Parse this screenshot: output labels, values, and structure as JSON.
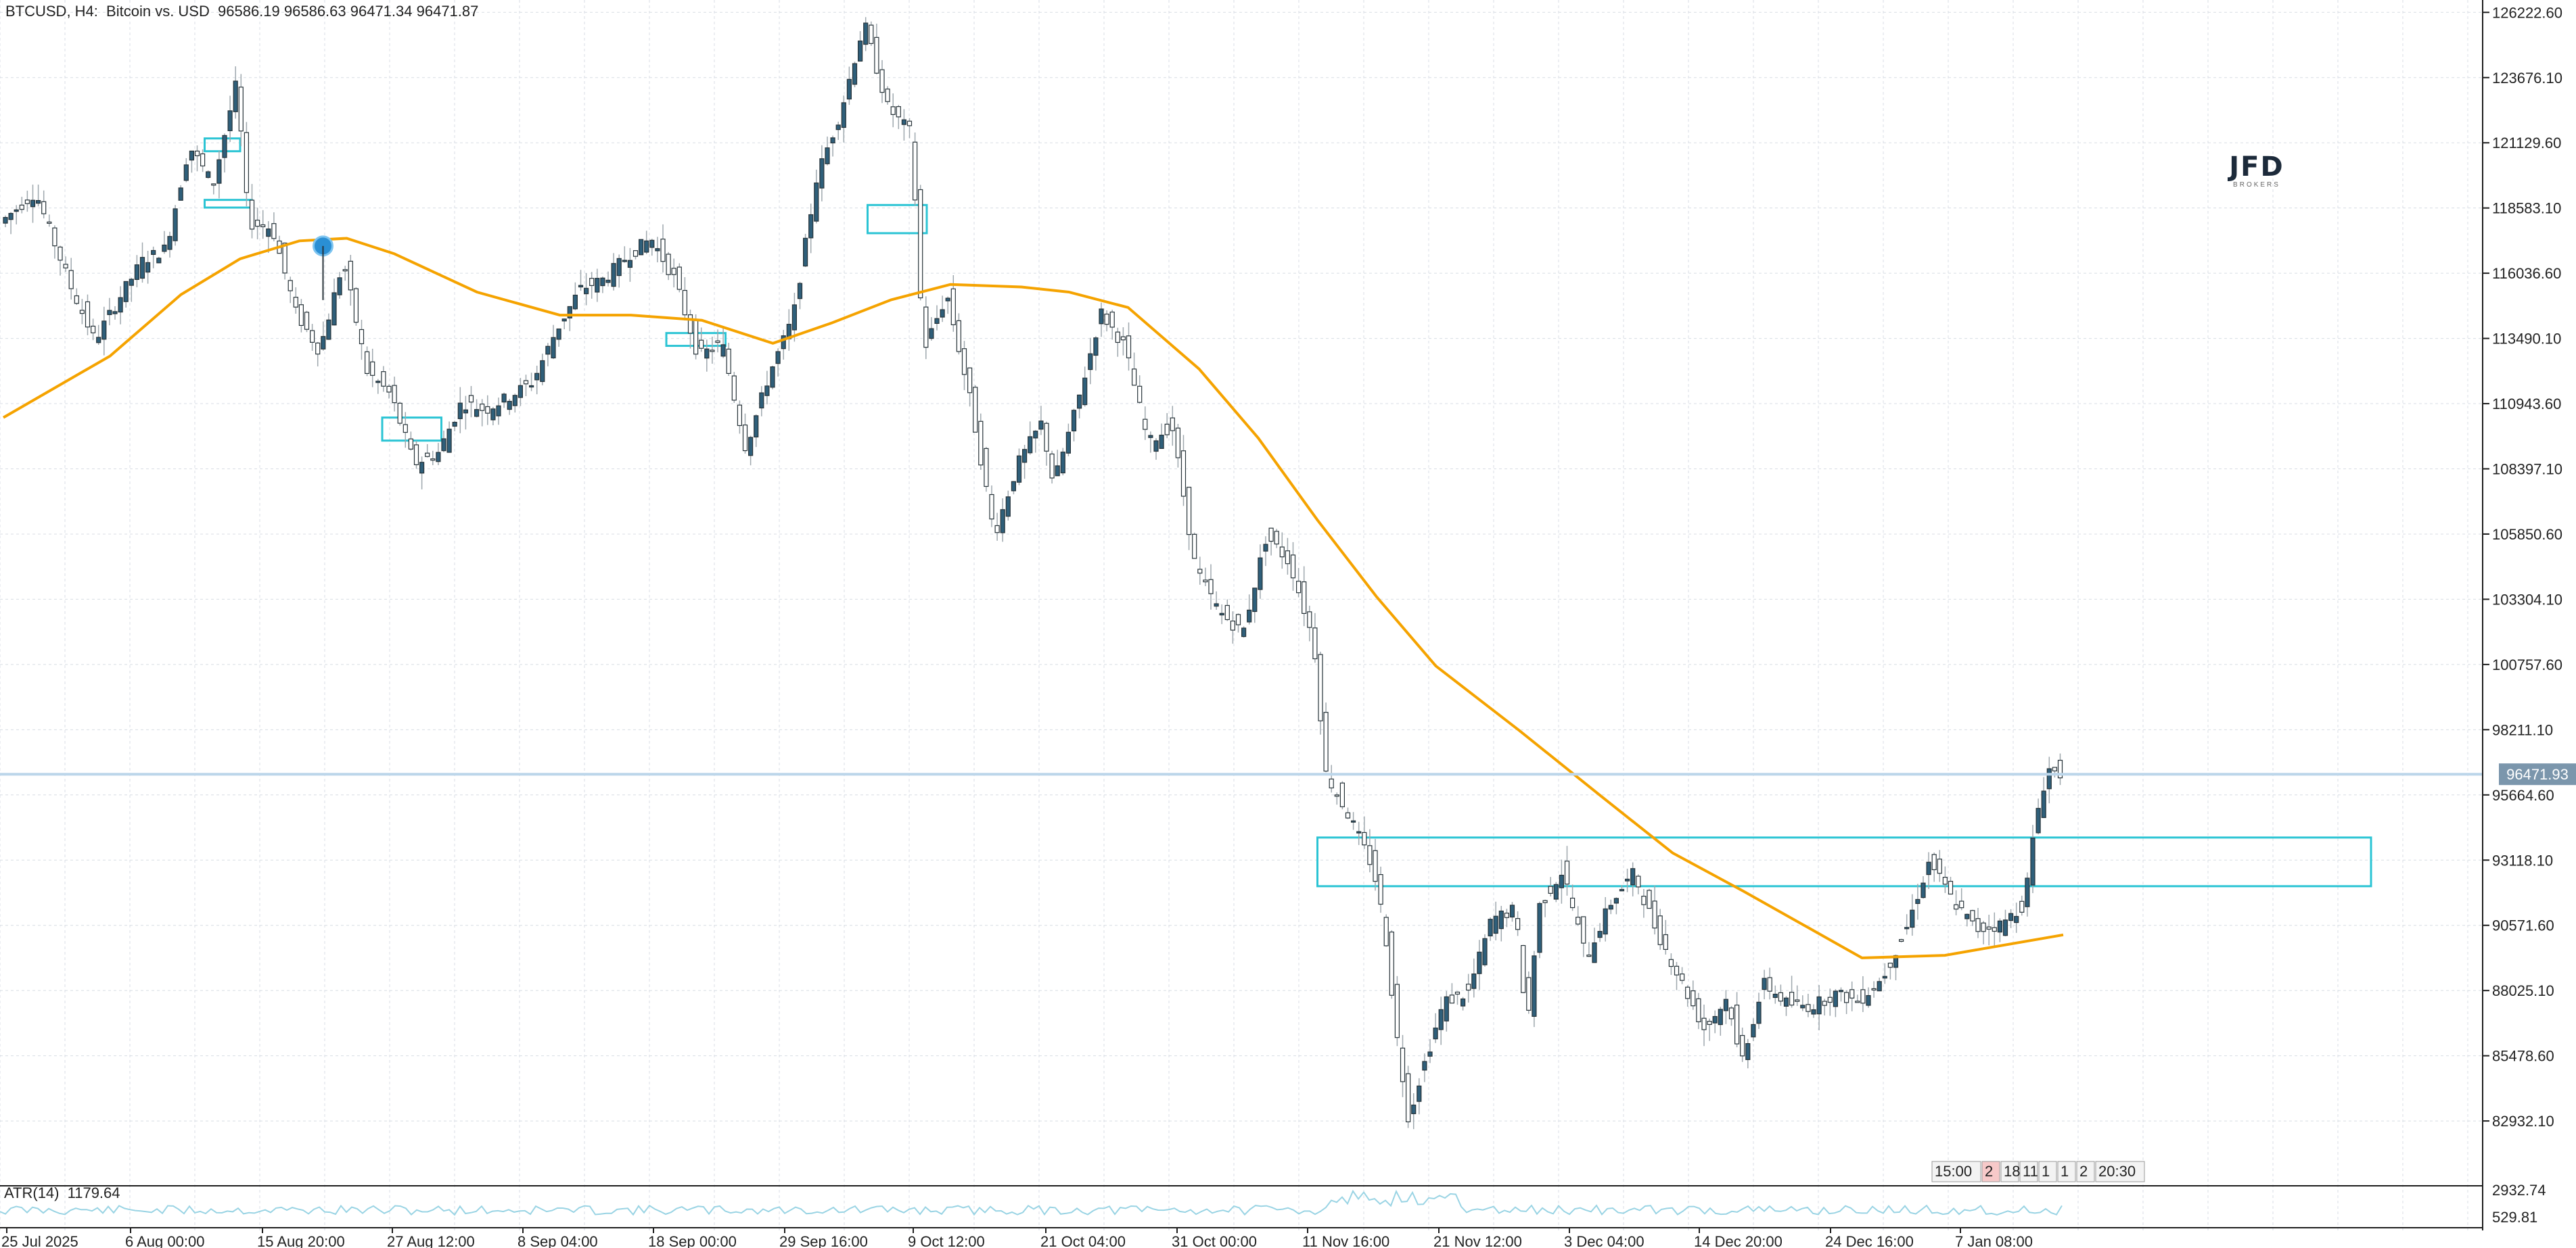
{
  "header": {
    "symbol": "BTCUSD, H4:",
    "description": "Bitcoin vs. USD",
    "ohlc": "96586.19 96586.63 96471.34 96471.87"
  },
  "logo": {
    "name": "JFD",
    "tagline": "BROKERS"
  },
  "atr": {
    "label": "ATR(14)",
    "value": "1179.64",
    "scale_max": "2932.74",
    "scale_min": "529.81"
  },
  "current_price_label": "96471.93",
  "scroll_labels": [
    "15:00",
    "2",
    "18",
    "11",
    "1",
    "1",
    "2",
    "20:30"
  ],
  "colors": {
    "background": "#ffffff",
    "grid": "#d8dde4",
    "candle_body": "#2f5f7a",
    "candle_outline": "#263238",
    "wick": "#9ea7ad",
    "ma_line": "#f5a300",
    "zone": "#2bc4d4",
    "price_line": "#bcd6ea",
    "price_tag": "#7b96ac",
    "atr_line": "#9ad4e4"
  },
  "chart_data": {
    "type": "candlestick",
    "symbol": "BTCUSD",
    "timeframe": "H4",
    "y_ticks": [
      "126222.60",
      "123676.10",
      "121129.60",
      "118583.10",
      "116036.60",
      "113490.10",
      "110943.60",
      "108397.10",
      "105850.60",
      "103304.10",
      "100757.60",
      "98211.10",
      "95664.60",
      "93118.10",
      "90571.60",
      "88025.10",
      "85478.60",
      "82932.10"
    ],
    "x_ticks": [
      "25 Jul 2025",
      "6 Aug 00:00",
      "15 Aug 20:00",
      "27 Aug 12:00",
      "8 Sep 04:00",
      "18 Sep 00:00",
      "29 Sep 16:00",
      "9 Oct 12:00",
      "21 Oct 04:00",
      "31 Oct 00:00",
      "11 Nov 16:00",
      "21 Nov 12:00",
      "3 Dec 04:00",
      "14 Dec 20:00",
      "24 Dec 16:00",
      "7 Jan 08:00"
    ],
    "ylim": [
      80400,
      126600
    ],
    "last_price": 96471.93,
    "grid": true,
    "price_path": [
      {
        "x": "25 Jul 2025",
        "y": 118000
      },
      {
        "x": "28 Jul 2025",
        "y": 119200
      },
      {
        "x": "31 Jul 2025",
        "y": 115500
      },
      {
        "x": "2 Aug 2025",
        "y": 113400
      },
      {
        "x": "4 Aug 2025",
        "y": 115000
      },
      {
        "x": "6 Aug 2025",
        "y": 116500
      },
      {
        "x": "8 Aug 2025",
        "y": 117000
      },
      {
        "x": "10 Aug 2025",
        "y": 121000
      },
      {
        "x": "12 Aug 2025",
        "y": 119500
      },
      {
        "x": "14 Aug 2025",
        "y": 123500
      },
      {
        "x": "15 Aug 2025",
        "y": 118000
      },
      {
        "x": "17 Aug 2025",
        "y": 117800
      },
      {
        "x": "19 Aug 2025",
        "y": 114500
      },
      {
        "x": "21 Aug 2025",
        "y": 113000
      },
      {
        "x": "23 Aug 2025",
        "y": 116500
      },
      {
        "x": "25 Aug 2025",
        "y": 112200
      },
      {
        "x": "27 Aug 2025",
        "y": 111300
      },
      {
        "x": "29 Aug 2025",
        "y": 108600
      },
      {
        "x": "31 Aug 2025",
        "y": 109000
      },
      {
        "x": "2 Sep 2025",
        "y": 111000
      },
      {
        "x": "4 Sep 2025",
        "y": 110700
      },
      {
        "x": "6 Sep 2025",
        "y": 111200
      },
      {
        "x": "8 Sep 2025",
        "y": 111800
      },
      {
        "x": "10 Sep 2025",
        "y": 113800
      },
      {
        "x": "12 Sep 2025",
        "y": 115400
      },
      {
        "x": "14 Sep 2025",
        "y": 115800
      },
      {
        "x": "16 Sep 2025",
        "y": 116700
      },
      {
        "x": "18 Sep 2025",
        "y": 117400
      },
      {
        "x": "20 Sep 2025",
        "y": 115800
      },
      {
        "x": "22 Sep 2025",
        "y": 112800
      },
      {
        "x": "24 Sep 2025",
        "y": 113300
      },
      {
        "x": "26 Sep 2025",
        "y": 109200
      },
      {
        "x": "28 Sep 2025",
        "y": 112100
      },
      {
        "x": "30 Sep 2025",
        "y": 114300
      },
      {
        "x": "2 Oct 2025",
        "y": 119800
      },
      {
        "x": "4 Oct 2025",
        "y": 122300
      },
      {
        "x": "6 Oct 2025",
        "y": 125800
      },
      {
        "x": "8 Oct 2025",
        "y": 122500
      },
      {
        "x": "10 Oct 2025",
        "y": 121500
      },
      {
        "x": "11 Oct 2025",
        "y": 113000
      },
      {
        "x": "13 Oct 2025",
        "y": 115200
      },
      {
        "x": "15 Oct 2025",
        "y": 111000
      },
      {
        "x": "17 Oct 2025",
        "y": 105800
      },
      {
        "x": "19 Oct 2025",
        "y": 108600
      },
      {
        "x": "21 Oct 2025",
        "y": 110200
      },
      {
        "x": "22 Oct 2025",
        "y": 107800
      },
      {
        "x": "24 Oct 2025",
        "y": 110900
      },
      {
        "x": "26 Oct 2025",
        "y": 114500
      },
      {
        "x": "28 Oct 2025",
        "y": 113200
      },
      {
        "x": "30 Oct 2025",
        "y": 109400
      },
      {
        "x": "1 Nov 2025",
        "y": 110100
      },
      {
        "x": "3 Nov 2025",
        "y": 104500
      },
      {
        "x": "5 Nov 2025",
        "y": 102800
      },
      {
        "x": "7 Nov 2025",
        "y": 102000
      },
      {
        "x": "9 Nov 2025",
        "y": 105800
      },
      {
        "x": "11 Nov 2025",
        "y": 104700
      },
      {
        "x": "13 Nov 2025",
        "y": 101600
      },
      {
        "x": "14 Nov 2025",
        "y": 96500
      },
      {
        "x": "16 Nov 2025",
        "y": 94800
      },
      {
        "x": "18 Nov 2025",
        "y": 92800
      },
      {
        "x": "19 Nov 2025",
        "y": 90400
      },
      {
        "x": "20 Nov 2025",
        "y": 86200
      },
      {
        "x": "21 Nov 2025",
        "y": 83000
      },
      {
        "x": "22 Nov 2025",
        "y": 84700
      },
      {
        "x": "24 Nov 2025",
        "y": 87600
      },
      {
        "x": "26 Nov 2025",
        "y": 87900
      },
      {
        "x": "28 Nov 2025",
        "y": 90800
      },
      {
        "x": "30 Nov 2025",
        "y": 91200
      },
      {
        "x": "1 Dec 2025",
        "y": 86600
      },
      {
        "x": "2 Dec 2025",
        "y": 91300
      },
      {
        "x": "4 Dec 2025",
        "y": 92700
      },
      {
        "x": "6 Dec 2025",
        "y": 89300
      },
      {
        "x": "8 Dec 2025",
        "y": 91400
      },
      {
        "x": "10 Dec 2025",
        "y": 92600
      },
      {
        "x": "12 Dec 2025",
        "y": 90300
      },
      {
        "x": "14 Dec 2025",
        "y": 88400
      },
      {
        "x": "16 Dec 2025",
        "y": 86500
      },
      {
        "x": "18 Dec 2025",
        "y": 87800
      },
      {
        "x": "19 Dec 2025",
        "y": 85100
      },
      {
        "x": "21 Dec 2025",
        "y": 88300
      },
      {
        "x": "23 Dec 2025",
        "y": 87500
      },
      {
        "x": "25 Dec 2025",
        "y": 87400
      },
      {
        "x": "27 Dec 2025",
        "y": 87900
      },
      {
        "x": "29 Dec 2025",
        "y": 87600
      },
      {
        "x": "31 Dec 2025",
        "y": 88500
      },
      {
        "x": "2 Jan 2026",
        "y": 90400
      },
      {
        "x": "4 Jan 2026",
        "y": 93100
      },
      {
        "x": "6 Jan 2026",
        "y": 91500
      },
      {
        "x": "8 Jan 2026",
        "y": 90400
      },
      {
        "x": "10 Jan 2026",
        "y": 90600
      },
      {
        "x": "12 Jan 2026",
        "y": 91400
      },
      {
        "x": "13 Jan 2026",
        "y": 94800
      },
      {
        "x": "14 Jan 2026",
        "y": 96700
      },
      {
        "x": "15 Jan 2026",
        "y": 96470
      }
    ],
    "moving_average": [
      {
        "x": "25 Jul 2025",
        "y": 110400
      },
      {
        "x": "3 Aug 2025",
        "y": 112800
      },
      {
        "x": "9 Aug 2025",
        "y": 115200
      },
      {
        "x": "14 Aug 2025",
        "y": 116600
      },
      {
        "x": "19 Aug 2025",
        "y": 117300
      },
      {
        "x": "23 Aug 2025",
        "y": 117400
      },
      {
        "x": "27 Aug 2025",
        "y": 116800
      },
      {
        "x": "3 Sep 2025",
        "y": 115300
      },
      {
        "x": "10 Sep 2025",
        "y": 114400
      },
      {
        "x": "16 Sep 2025",
        "y": 114400
      },
      {
        "x": "22 Sep 2025",
        "y": 114200
      },
      {
        "x": "28 Sep 2025",
        "y": 113300
      },
      {
        "x": "3 Oct 2025",
        "y": 114100
      },
      {
        "x": "8 Oct 2025",
        "y": 115000
      },
      {
        "x": "13 Oct 2025",
        "y": 115600
      },
      {
        "x": "19 Oct 2025",
        "y": 115500
      },
      {
        "x": "23 Oct 2025",
        "y": 115300
      },
      {
        "x": "28 Oct 2025",
        "y": 114700
      },
      {
        "x": "3 Nov 2025",
        "y": 112300
      },
      {
        "x": "8 Nov 2025",
        "y": 109600
      },
      {
        "x": "13 Nov 2025",
        "y": 106400
      },
      {
        "x": "18 Nov 2025",
        "y": 103400
      },
      {
        "x": "23 Nov 2025",
        "y": 100700
      },
      {
        "x": "30 Nov 2025",
        "y": 98200
      },
      {
        "x": "7 Dec 2025",
        "y": 95600
      },
      {
        "x": "13 Dec 2025",
        "y": 93400
      },
      {
        "x": "19 Dec 2025",
        "y": 91900
      },
      {
        "x": "24 Dec 2025",
        "y": 90600
      },
      {
        "x": "29 Dec 2025",
        "y": 89300
      },
      {
        "x": "5 Jan 2026",
        "y": 89400
      },
      {
        "x": "15 Jan 2026",
        "y": 90200
      }
    ],
    "zones": [
      {
        "x_start": "11 Aug 2025",
        "x_end": "14 Aug 2025",
        "y_low": 120800,
        "y_high": 121300
      },
      {
        "x_start": "11 Aug 2025",
        "x_end": "15 Aug 2025",
        "y_low": 118600,
        "y_high": 118900
      },
      {
        "x_start": "26 Aug 2025",
        "x_end": "31 Aug 2025",
        "y_low": 109500,
        "y_high": 110400
      },
      {
        "x_start": "19 Sep 2025",
        "x_end": "24 Sep 2025",
        "y_low": 113200,
        "y_high": 113700
      },
      {
        "x_start": "6 Oct 2025",
        "x_end": "11 Oct 2025",
        "y_low": 117600,
        "y_high": 118700
      },
      {
        "x_start": "13 Nov 2025",
        "x_end": "10 Feb 2026",
        "y_low": 92100,
        "y_high": 94000
      }
    ],
    "marker": {
      "x": "21 Aug 2025",
      "y": 117100
    }
  }
}
